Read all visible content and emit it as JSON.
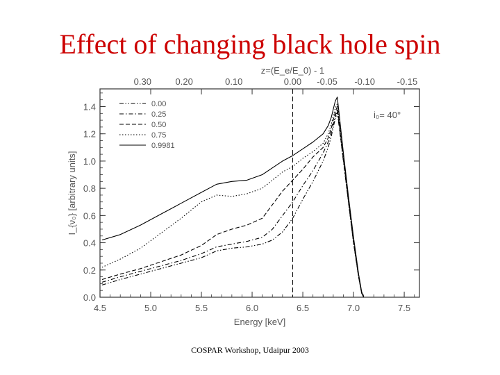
{
  "slide": {
    "title": "Effect of changing black hole spin",
    "footer": "COSPAR Workshop, Udaipur 2003"
  },
  "colors": {
    "title": "#cc0000",
    "axes": "#333333",
    "tick_text": "#555555",
    "curves": "#000000"
  },
  "chart_data": {
    "type": "line",
    "title": "",
    "xlabel": "Energy [keV]",
    "ylabel": "I_{ν₀} [arbitrary units]",
    "top_xlabel": "z=(E_e/E_0) - 1",
    "xlim": [
      4.5,
      7.65
    ],
    "ylim": [
      0.0,
      1.53
    ],
    "xticks": [
      4.5,
      5.0,
      5.5,
      6.0,
      6.5,
      7.0,
      7.5
    ],
    "xtick_labels": [
      "4.5",
      "5.0",
      "5.5",
      "6.0",
      "6.5",
      "7.0",
      "7.5"
    ],
    "yticks": [
      0.0,
      0.2,
      0.4,
      0.6,
      0.8,
      1.0,
      1.2,
      1.4
    ],
    "ytick_labels": [
      "0.0",
      "0.2",
      "0.4",
      "0.6",
      "0.8",
      "1.0",
      "1.2",
      "1.4"
    ],
    "top_ticks": [
      {
        "label": "0.30",
        "energy": 4.92
      },
      {
        "label": "0.20",
        "energy": 5.33
      },
      {
        "label": "0.10",
        "energy": 5.82
      },
      {
        "label": "0.00",
        "energy": 6.4
      },
      {
        "label": "-0.05",
        "energy": 6.74
      },
      {
        "label": "-0.10",
        "energy": 7.11
      },
      {
        "label": "-0.15",
        "energy": 7.53
      }
    ],
    "reference_line": {
      "x": 6.4,
      "style": "dashed"
    },
    "annotation": "i₀= 40°",
    "legend_position": "top-left",
    "series": [
      {
        "name": "0.00",
        "dash": "dash-dot-dot",
        "x": [
          4.52,
          4.7,
          4.9,
          5.1,
          5.3,
          5.5,
          5.65,
          5.8,
          5.95,
          6.1,
          6.2,
          6.3,
          6.4,
          6.5,
          6.6,
          6.7,
          6.75,
          6.78,
          6.8,
          6.82,
          6.84,
          6.9,
          6.95,
          7.0,
          7.05,
          7.08,
          7.1
        ],
        "y": [
          0.09,
          0.13,
          0.17,
          0.21,
          0.25,
          0.29,
          0.34,
          0.36,
          0.37,
          0.39,
          0.42,
          0.48,
          0.58,
          0.72,
          0.85,
          1.0,
          1.1,
          1.18,
          1.25,
          1.31,
          1.36,
          1.0,
          0.7,
          0.4,
          0.15,
          0.03,
          0.0
        ]
      },
      {
        "name": "0.25",
        "dash": "dash-dot",
        "x": [
          4.52,
          4.7,
          4.9,
          5.1,
          5.3,
          5.5,
          5.65,
          5.8,
          5.95,
          6.1,
          6.2,
          6.3,
          6.4,
          6.5,
          6.6,
          6.7,
          6.75,
          6.78,
          6.8,
          6.82,
          6.84,
          6.9,
          6.95,
          7.0,
          7.05,
          7.08,
          7.1
        ],
        "y": [
          0.11,
          0.15,
          0.19,
          0.23,
          0.27,
          0.32,
          0.37,
          0.39,
          0.41,
          0.44,
          0.5,
          0.6,
          0.7,
          0.82,
          0.93,
          1.06,
          1.14,
          1.21,
          1.27,
          1.33,
          1.38,
          1.0,
          0.7,
          0.4,
          0.15,
          0.03,
          0.0
        ]
      },
      {
        "name": "0.50",
        "dash": "dashed",
        "x": [
          4.52,
          4.7,
          4.9,
          5.1,
          5.3,
          5.5,
          5.65,
          5.8,
          5.95,
          6.1,
          6.2,
          6.3,
          6.4,
          6.5,
          6.6,
          6.7,
          6.75,
          6.78,
          6.8,
          6.82,
          6.84,
          6.9,
          6.95,
          7.0,
          7.05,
          7.08,
          7.1
        ],
        "y": [
          0.13,
          0.17,
          0.21,
          0.26,
          0.31,
          0.38,
          0.46,
          0.5,
          0.53,
          0.58,
          0.68,
          0.78,
          0.86,
          0.94,
          1.03,
          1.1,
          1.17,
          1.24,
          1.3,
          1.36,
          1.4,
          1.02,
          0.7,
          0.4,
          0.15,
          0.03,
          0.0
        ]
      },
      {
        "name": "0.75",
        "dash": "dotted",
        "x": [
          4.52,
          4.7,
          4.9,
          5.1,
          5.3,
          5.5,
          5.65,
          5.8,
          5.95,
          6.1,
          6.2,
          6.3,
          6.4,
          6.5,
          6.6,
          6.7,
          6.75,
          6.78,
          6.8,
          6.82,
          6.84,
          6.9,
          6.95,
          7.0,
          7.05,
          7.08,
          7.1
        ],
        "y": [
          0.22,
          0.28,
          0.36,
          0.47,
          0.58,
          0.7,
          0.75,
          0.74,
          0.76,
          0.8,
          0.86,
          0.92,
          0.96,
          1.02,
          1.07,
          1.13,
          1.2,
          1.27,
          1.33,
          1.39,
          1.42,
          1.04,
          0.72,
          0.42,
          0.16,
          0.03,
          0.0
        ]
      },
      {
        "name": "0.9981",
        "dash": "solid",
        "x": [
          4.52,
          4.7,
          4.9,
          5.1,
          5.3,
          5.5,
          5.65,
          5.8,
          5.95,
          6.1,
          6.2,
          6.3,
          6.4,
          6.5,
          6.6,
          6.7,
          6.75,
          6.78,
          6.8,
          6.82,
          6.84,
          6.9,
          6.95,
          7.0,
          7.05,
          7.08,
          7.1
        ],
        "y": [
          0.42,
          0.46,
          0.53,
          0.61,
          0.69,
          0.77,
          0.83,
          0.85,
          0.86,
          0.9,
          0.95,
          1.0,
          1.04,
          1.09,
          1.14,
          1.2,
          1.26,
          1.32,
          1.38,
          1.44,
          1.47,
          1.06,
          0.74,
          0.44,
          0.17,
          0.04,
          0.0
        ]
      }
    ]
  }
}
